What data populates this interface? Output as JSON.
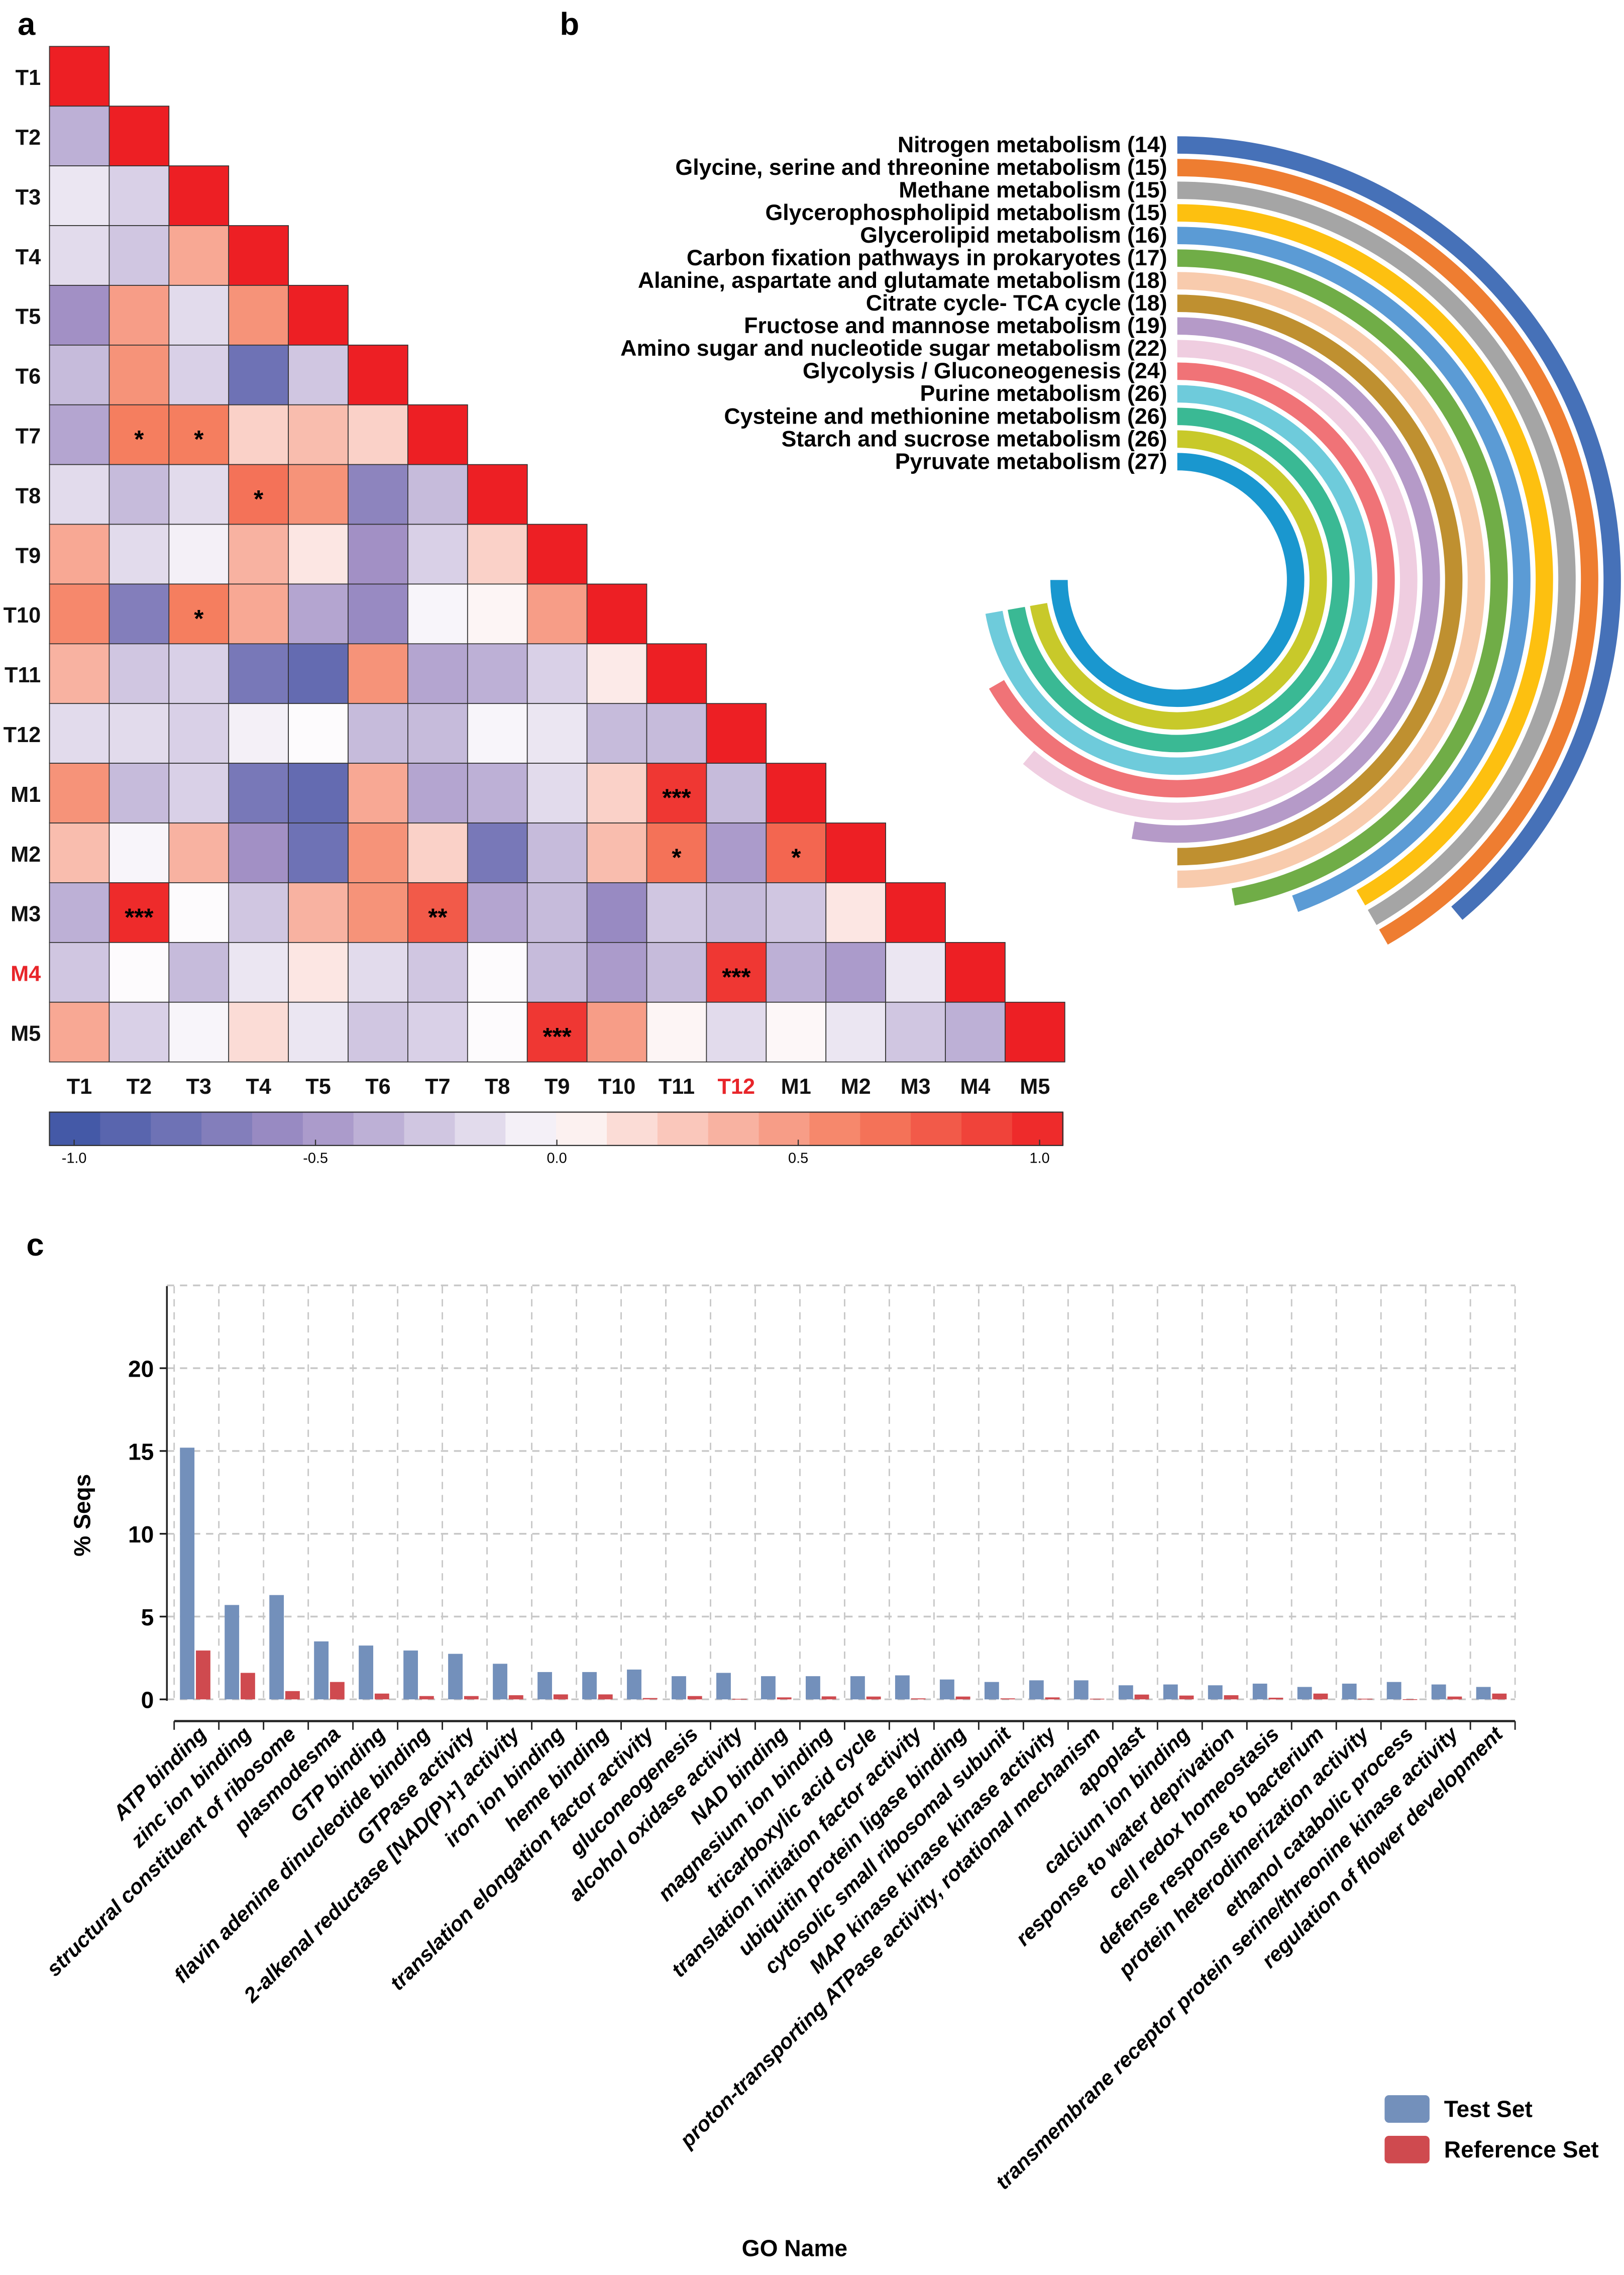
{
  "panels": {
    "a": "a",
    "b": "b",
    "c": "c"
  },
  "chart_data": [
    {
      "type": "heatmap",
      "title": "",
      "labels": [
        "T1",
        "T2",
        "T3",
        "T4",
        "T5",
        "T6",
        "T7",
        "T8",
        "T9",
        "T10",
        "T11",
        "T12",
        "M1",
        "M2",
        "M3",
        "M4",
        "M5"
      ],
      "highlight_row_labels": [
        "M4"
      ],
      "highlight_col_labels": [
        "T12"
      ],
      "highlight_color": "#e8252a",
      "lower_triangle": [
        [
          1
        ],
        [
          -0.35,
          1
        ],
        [
          -0.1,
          -0.2,
          1
        ],
        [
          -0.15,
          -0.25,
          0.4,
          1
        ],
        [
          -0.5,
          0.45,
          -0.15,
          0.5,
          1
        ],
        [
          -0.3,
          0.5,
          -0.2,
          -0.75,
          -0.25,
          1
        ],
        [
          -0.4,
          0.6,
          0.6,
          0.2,
          0.3,
          0.2,
          1
        ],
        [
          -0.15,
          -0.3,
          -0.15,
          0.65,
          0.5,
          -0.6,
          -0.3,
          1
        ],
        [
          0.4,
          -0.15,
          -0.05,
          0.35,
          0.1,
          -0.5,
          -0.2,
          0.2,
          1
        ],
        [
          0.55,
          -0.65,
          0.6,
          0.4,
          -0.4,
          -0.55,
          -0.03,
          0.03,
          0.45,
          1
        ],
        [
          0.35,
          -0.25,
          -0.2,
          -0.7,
          -0.8,
          0.5,
          -0.4,
          -0.35,
          -0.2,
          0.08,
          1
        ],
        [
          -0.15,
          -0.15,
          -0.2,
          -0.05,
          0.0,
          -0.3,
          -0.3,
          -0.03,
          -0.1,
          -0.3,
          -0.3,
          1
        ],
        [
          0.5,
          -0.3,
          -0.2,
          -0.7,
          -0.8,
          0.4,
          -0.4,
          -0.35,
          -0.15,
          0.2,
          0.9,
          -0.3,
          1
        ],
        [
          0.3,
          -0.03,
          0.35,
          -0.5,
          -0.75,
          0.5,
          0.2,
          -0.7,
          -0.3,
          0.3,
          0.65,
          -0.45,
          0.7,
          1
        ],
        [
          -0.35,
          0.95,
          0.0,
          -0.25,
          0.35,
          0.5,
          0.75,
          -0.4,
          -0.3,
          -0.55,
          -0.25,
          -0.3,
          -0.25,
          0.1,
          1
        ],
        [
          -0.25,
          0.0,
          -0.3,
          -0.1,
          0.1,
          -0.15,
          -0.25,
          0.0,
          -0.3,
          -0.45,
          -0.3,
          0.9,
          -0.35,
          -0.45,
          -0.1,
          1
        ],
        [
          0.4,
          -0.2,
          -0.03,
          0.15,
          -0.1,
          -0.25,
          -0.2,
          0.0,
          0.9,
          0.45,
          0.03,
          -0.15,
          0.02,
          -0.1,
          -0.25,
          -0.35,
          1
        ]
      ],
      "significance": [
        {
          "row": "T7",
          "col": "T2",
          "mark": "*"
        },
        {
          "row": "T7",
          "col": "T3",
          "mark": "*"
        },
        {
          "row": "T8",
          "col": "T4",
          "mark": "*"
        },
        {
          "row": "T10",
          "col": "T3",
          "mark": "*"
        },
        {
          "row": "M1",
          "col": "T11",
          "mark": "***"
        },
        {
          "row": "M2",
          "col": "T11",
          "mark": "*"
        },
        {
          "row": "M2",
          "col": "M1",
          "mark": "*"
        },
        {
          "row": "M3",
          "col": "T2",
          "mark": "***"
        },
        {
          "row": "M3",
          "col": "T7",
          "mark": "**"
        },
        {
          "row": "M4",
          "col": "T12",
          "mark": "***"
        },
        {
          "row": "M5",
          "col": "T9",
          "mark": "***"
        }
      ],
      "colorbar": {
        "range": [
          -1,
          1
        ],
        "ticks": [
          -1.0,
          -0.5,
          0.0,
          0.5,
          1.0
        ],
        "tick_labels": [
          "-1.0",
          "-0.5",
          "0.0",
          "0.5",
          "1.0"
        ],
        "steps": 20,
        "colors": {
          "neg": "#3a53a4",
          "mid_neg": "#a290c5",
          "zero": "#fdfbfd",
          "mid_pos": "#f57e5f",
          "pos": "#ed1f24"
        }
      }
    },
    {
      "type": "radial-bar",
      "unit": "genes",
      "max_degrees_per_count": 10,
      "series": [
        {
          "name": "Nitrogen metabolism",
          "value": 14,
          "color": "#4671b8"
        },
        {
          "name": "Glycine, serine and threonine metabolism",
          "value": 15,
          "color": "#ee7d31"
        },
        {
          "name": "Methane metabolism",
          "value": 15,
          "color": "#a5a5a5"
        },
        {
          "name": "Glycerophospholipid metabolism",
          "value": 15,
          "color": "#fdc010"
        },
        {
          "name": "Glycerolipid metabolism",
          "value": 16,
          "color": "#5b9bd5"
        },
        {
          "name": "Carbon fixation pathways in prokaryotes",
          "value": 17,
          "color": "#70ad47"
        },
        {
          "name": "Alanine, aspartate and glutamate metabolism",
          "value": 18,
          "color": "#f8cbad"
        },
        {
          "name": "Citrate cycle- TCA cycle",
          "value": 18,
          "color": "#bf9030"
        },
        {
          "name": "Fructose and mannose metabolism",
          "value": 19,
          "color": "#b59ac8"
        },
        {
          "name": "Amino sugar and nucleotide sugar metabolism",
          "value": 22,
          "color": "#efcde0"
        },
        {
          "name": "Glycolysis / Gluconeogenesis",
          "value": 24,
          "color": "#f07377"
        },
        {
          "name": "Purine metabolism",
          "value": 26,
          "color": "#6ecbdb"
        },
        {
          "name": "Cysteine and methionine metabolism",
          "value": 26,
          "color": "#3ab994"
        },
        {
          "name": "Starch and sucrose metabolism",
          "value": 26,
          "color": "#c8c92a"
        },
        {
          "name": "Pyruvate metabolism",
          "value": 27,
          "color": "#1a97cf"
        }
      ]
    },
    {
      "type": "bar",
      "xlabel": "GO Name",
      "ylabel": "% Seqs",
      "ylim": [
        0,
        25
      ],
      "yticks": [
        0,
        5,
        10,
        15,
        20
      ],
      "grid": true,
      "legend_position": "bottom-right",
      "categories": [
        "ATP binding",
        "zinc ion binding",
        "structural constituent of ribosome",
        "plasmodesma",
        "GTP binding",
        "flavin adenine dinucleotide binding",
        "GTPase activity",
        "2-alkenal reductase [NAD(P)+] activity",
        "iron ion binding",
        "heme binding",
        "translation elongation factor activity",
        "gluconeogenesis",
        "alcohol oxidase activity",
        "NAD binding",
        "magnesium ion binding",
        "tricarboxylic acid cycle",
        "translation initiation factor activity",
        "ubiquitin protein ligase binding",
        "cytosolic small ribosomal subunit",
        "MAP kinase kinase kinase activity",
        "proton-transporting ATPase activity, rotational mechanism",
        "apoplast",
        "calcium ion binding",
        "response to water deprivation",
        "cell redox homeostasis",
        "defense response to bacterium",
        "protein heterodimerization activity",
        "ethanol catabolic process",
        "transmembrane receptor protein serine/threonine kinase activity",
        "regulation of flower development"
      ],
      "series": [
        {
          "name": "Test Set",
          "color": "#7390bb",
          "values": [
            15.2,
            5.7,
            6.3,
            3.5,
            3.25,
            2.95,
            2.75,
            2.15,
            1.65,
            1.65,
            1.8,
            1.4,
            1.6,
            1.4,
            1.4,
            1.4,
            1.45,
            1.2,
            1.05,
            1.15,
            1.15,
            0.85,
            0.9,
            0.85,
            0.95,
            0.75,
            0.95,
            1.05,
            0.9,
            0.75
          ]
        },
        {
          "name": "Reference Set",
          "color": "#cf4a4f",
          "values": [
            2.95,
            1.6,
            0.5,
            1.05,
            0.35,
            0.2,
            0.2,
            0.25,
            0.3,
            0.3,
            0.08,
            0.2,
            0.03,
            0.12,
            0.18,
            0.17,
            0.06,
            0.17,
            0.06,
            0.12,
            0.04,
            0.29,
            0.23,
            0.25,
            0.1,
            0.35,
            0.04,
            0.01,
            0.17,
            0.35
          ]
        }
      ]
    }
  ]
}
